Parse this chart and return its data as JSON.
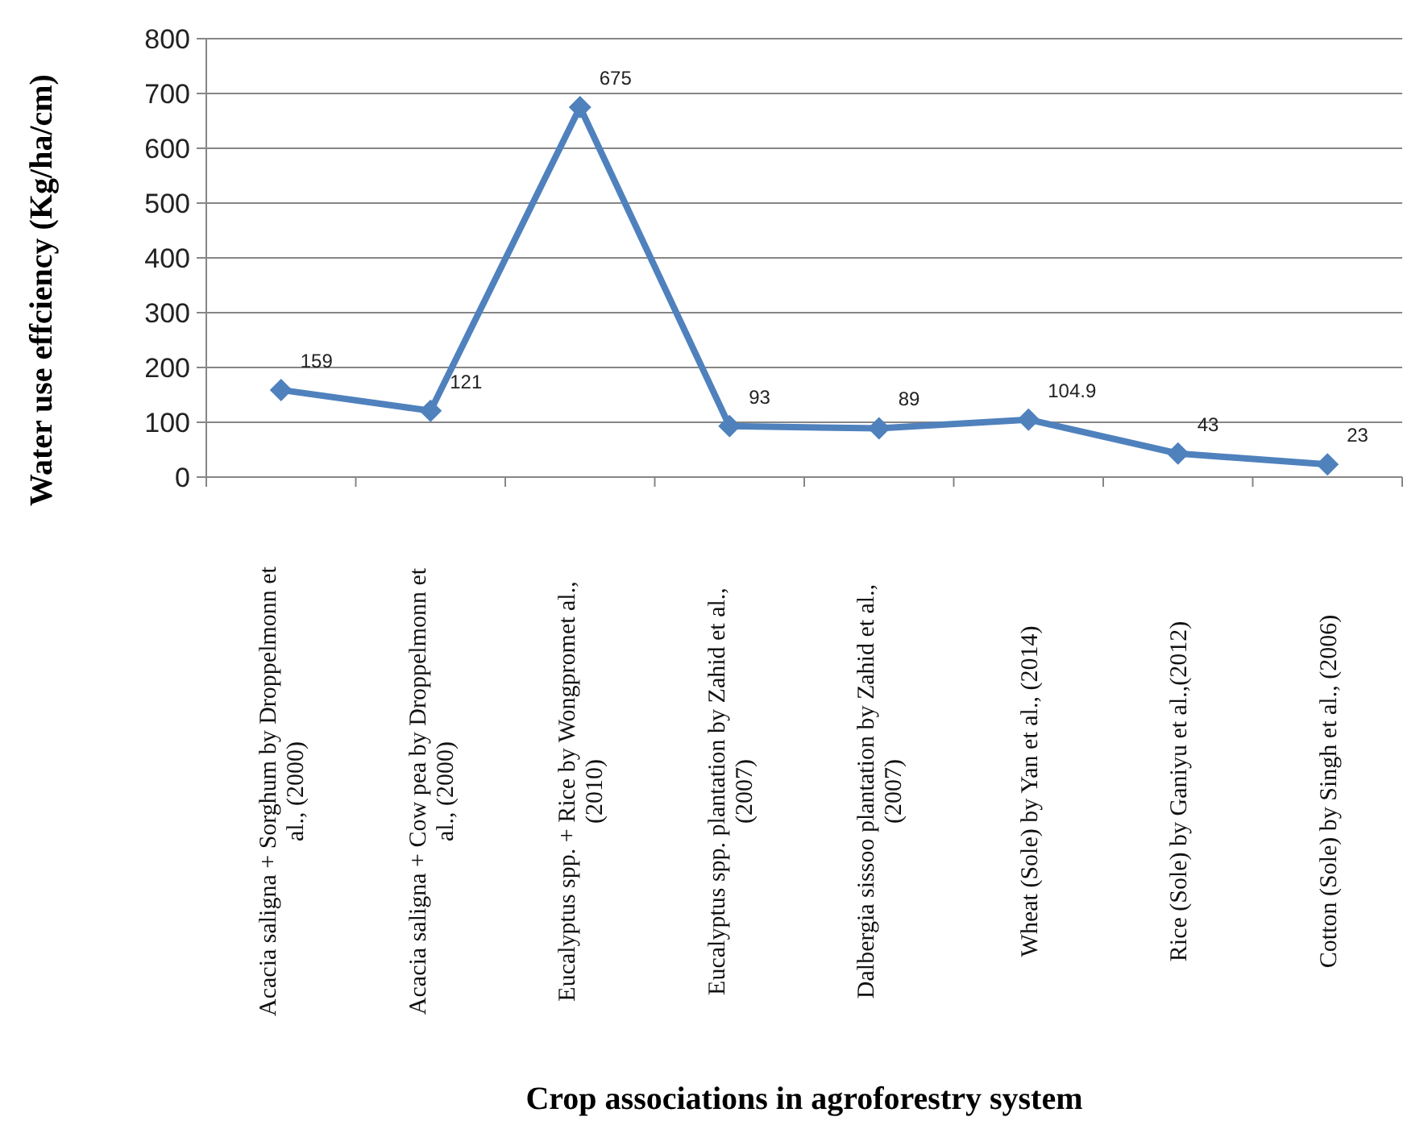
{
  "chart_data": {
    "type": "line",
    "xlabel": "Crop associations in agroforestry system",
    "ylabel": "Water use effciency (Kg/ha/cm)",
    "categories": [
      "Acacia saligna + Sorghum by Droppelmonn et al., (2000)",
      "Acacia saligna + Cow pea by Droppelmonn et al., (2000)",
      "Eucalyptus spp. + Rice by Wongpromet al., (2010)",
      "Eucalyptus spp. plantation by Zahid et al., (2007)",
      "Dalbergia sissoo plantation by Zahid et al., (2007)",
      "Wheat (Sole) by Yan et al., (2014)",
      "Rice (Sole) by Ganiyu et al.,(2012)",
      "Cotton (Sole) by Singh et al., (2006)"
    ],
    "series": [
      {
        "color": "#4f81bd",
        "values": [
          159,
          121,
          675,
          93,
          89,
          104.9,
          43,
          23
        ]
      }
    ],
    "ylim": [
      0,
      800
    ],
    "yticks": [
      0,
      100,
      200,
      300,
      400,
      500,
      600,
      700,
      800
    ],
    "grid": "y",
    "data_labels": true,
    "marker": "diamond",
    "line_style": "solid"
  }
}
